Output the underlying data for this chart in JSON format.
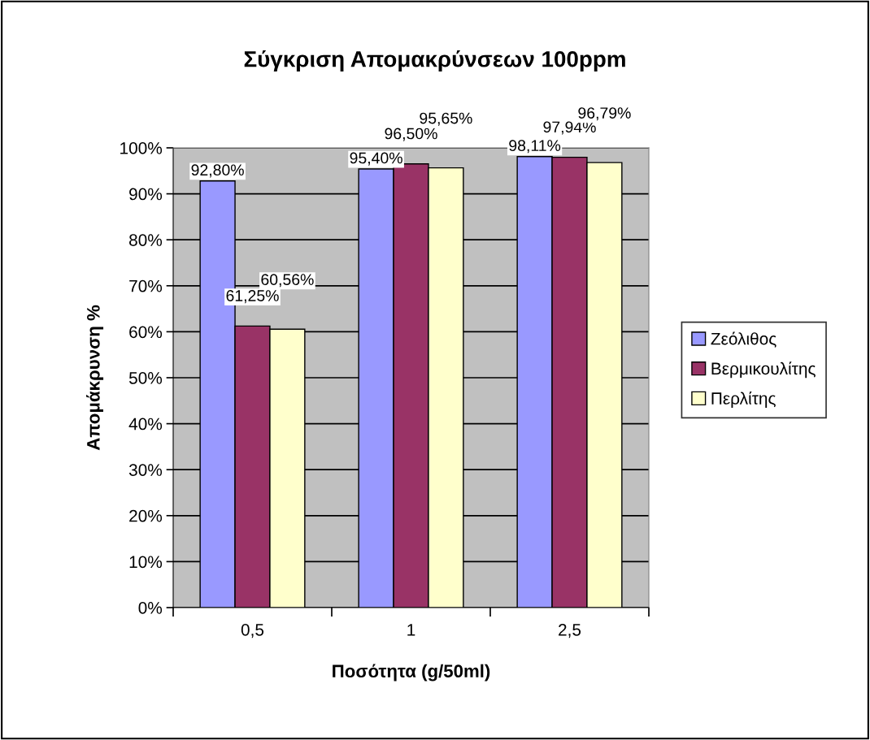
{
  "chart_data": {
    "type": "bar",
    "title": "Σύγκριση Απομακρύνσεων 100ppm",
    "xlabel": "Ποσότητα (g/50ml)",
    "ylabel": "Απομάκρυνση %",
    "categories": [
      "0,5",
      "1",
      "2,5"
    ],
    "series": [
      {
        "name": "Ζεόλιθος",
        "color": "#9999ff",
        "values": [
          92.8,
          95.4,
          98.11
        ],
        "value_labels": [
          "92,80%",
          "95,40%",
          "98,11%"
        ]
      },
      {
        "name": "Βερμικουλίτης",
        "color": "#993366",
        "values": [
          61.25,
          96.5,
          97.94
        ],
        "value_labels": [
          "61,25%",
          "96,50%",
          "97,94%"
        ]
      },
      {
        "name": "Περλίτης",
        "color": "#ffffcc",
        "values": [
          60.56,
          95.65,
          96.79
        ],
        "value_labels": [
          "60,56%",
          "95,65%",
          "96,79%"
        ]
      }
    ],
    "ylim": [
      0,
      100
    ],
    "yticks": [
      {
        "value": 0,
        "label": "0%"
      },
      {
        "value": 10,
        "label": "10%"
      },
      {
        "value": 20,
        "label": "20%"
      },
      {
        "value": 30,
        "label": "30%"
      },
      {
        "value": 40,
        "label": "40%"
      },
      {
        "value": 50,
        "label": "50%"
      },
      {
        "value": 60,
        "label": "60%"
      },
      {
        "value": 70,
        "label": "70%"
      },
      {
        "value": 80,
        "label": "80%"
      },
      {
        "value": 90,
        "label": "90%"
      },
      {
        "value": 100,
        "label": "100%"
      }
    ],
    "grid": "y",
    "legend": "right"
  }
}
